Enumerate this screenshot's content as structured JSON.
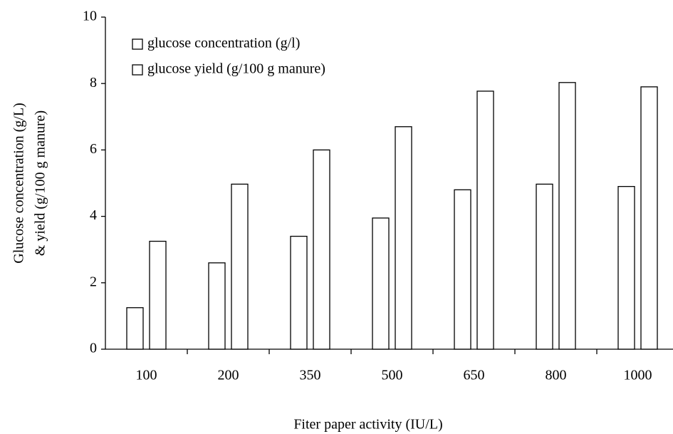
{
  "chart_data": {
    "type": "bar",
    "categories": [
      "100",
      "200",
      "350",
      "500",
      "650",
      "800",
      "1000"
    ],
    "series": [
      {
        "name": "glucose concentration (g/l)",
        "color": "#ffffff",
        "values": [
          1.25,
          2.6,
          3.4,
          3.95,
          4.8,
          4.97,
          4.9
        ]
      },
      {
        "name": "glucose yield (g/100 g manure)",
        "color": "#ffffff",
        "values": [
          3.25,
          4.97,
          6.0,
          6.7,
          7.77,
          8.03,
          7.9
        ]
      }
    ],
    "x_label": "Fiter paper activity (IU/L)",
    "y_label": [
      "Glucose concentration (g/L)",
      "& yield (g/100 g manure)"
    ],
    "ylim": [
      0,
      10
    ],
    "yticks": [
      0,
      2,
      4,
      6,
      8,
      10
    ],
    "legend": "upper left",
    "grid": false
  }
}
